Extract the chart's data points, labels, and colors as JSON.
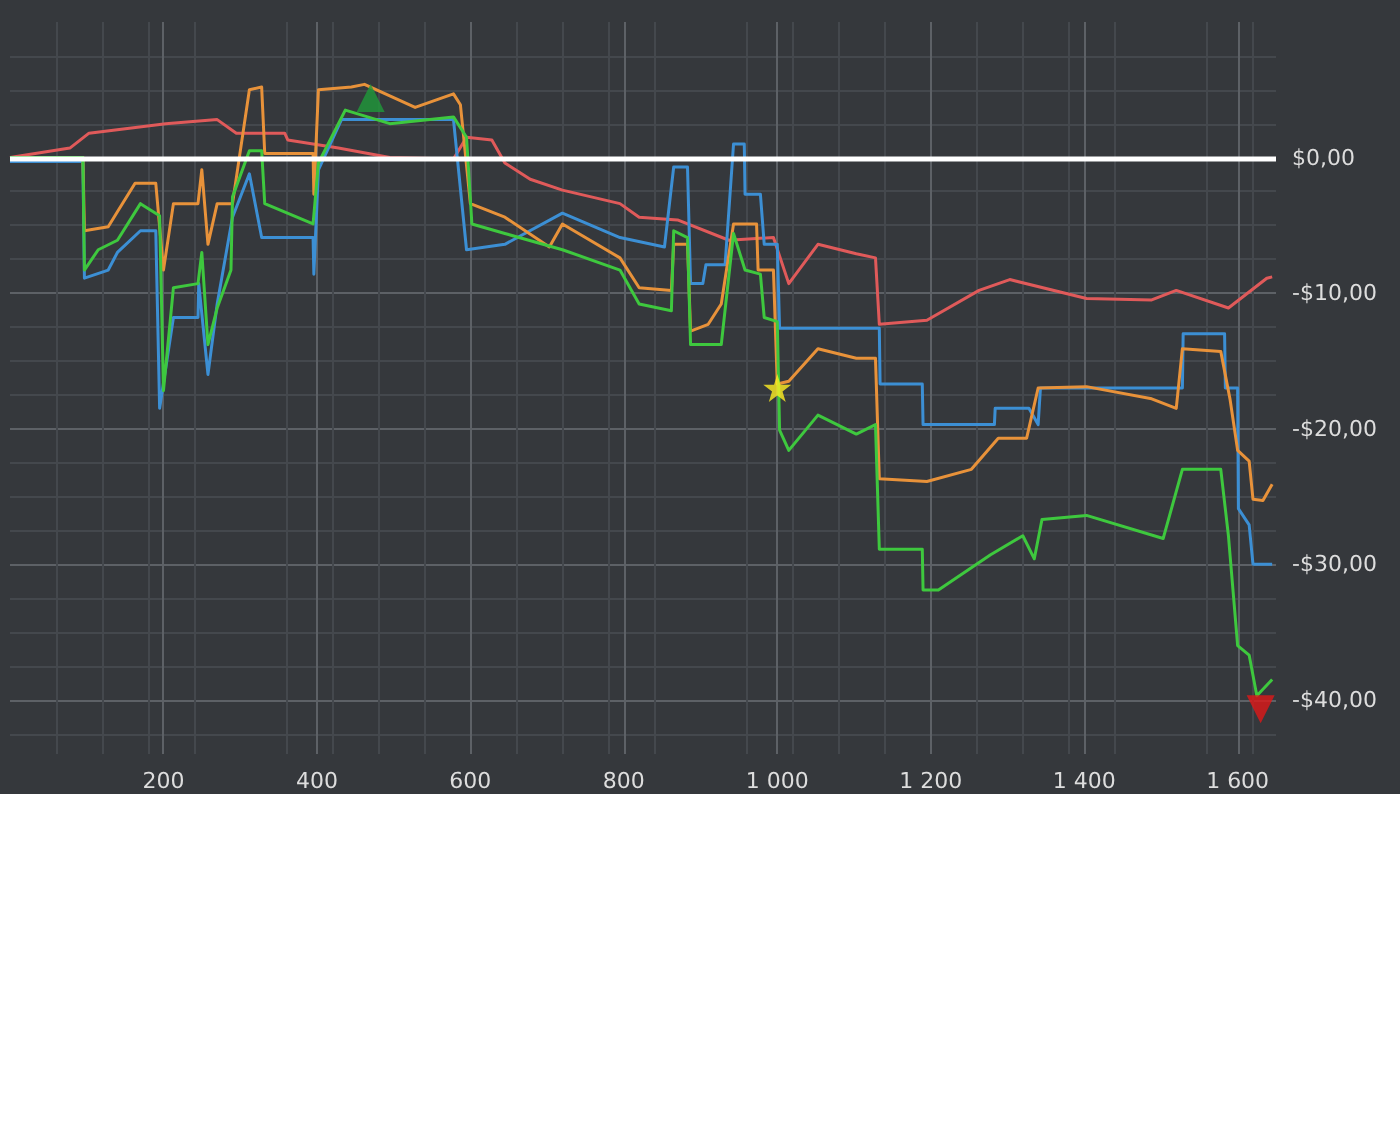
{
  "chart_data": {
    "type": "line",
    "xlim": [
      0,
      1650
    ],
    "xticks": [
      200,
      400,
      600,
      800,
      {
        "value": 1000,
        "label": "1 000"
      },
      {
        "value": 1200,
        "label": "1 200"
      },
      {
        "value": 1400,
        "label": "1 400"
      },
      {
        "value": 1600,
        "label": "1 600"
      }
    ],
    "ylim": [
      -44,
      10
    ],
    "yticks": [
      {
        "value": 0,
        "label": "$0,00"
      },
      {
        "value": -10,
        "label": "-$10,00"
      },
      {
        "value": -20,
        "label": "-$20,00"
      },
      {
        "value": -30,
        "label": "-$30,00"
      },
      {
        "value": -40,
        "label": "-$40,00"
      }
    ],
    "grid": true,
    "marker": "none",
    "line_style": "solid",
    "ref_lines": [
      {
        "axis": "y",
        "value": 0,
        "color": "#ffffff"
      }
    ],
    "series": [
      {
        "color": "#e05a5a",
        "x": [
          0,
          78,
          103,
          203,
          270,
          295,
          358,
          362,
          428,
          495,
          578,
          595,
          628,
          645,
          678,
          720,
          795,
          820,
          870,
          937,
          995,
          1015,
          1053,
          1103,
          1128,
          1133,
          1195,
          1263,
          1303,
          1403,
          1488,
          1520,
          1588,
          1638,
          1645
        ],
        "values": [
          0,
          0.7,
          1.8,
          2.5,
          2.8,
          1.8,
          1.8,
          1.3,
          0.7,
          0,
          -0.1,
          1.5,
          1.3,
          -0.4,
          -1.6,
          -2.4,
          -3.4,
          -4.4,
          -4.6,
          -6.1,
          -5.9,
          -9.3,
          -6.4,
          -7.1,
          -7.4,
          -12.3,
          -12,
          -9.8,
          -9,
          -10.4,
          -10.5,
          -9.8,
          -11.1,
          -8.9,
          -8.8
        ]
      },
      {
        "color": "#3c8fd4",
        "x": [
          0,
          95,
          97,
          128,
          140,
          170,
          190,
          195,
          213,
          245,
          246,
          258,
          270,
          290,
          312,
          328,
          395,
          396,
          402,
          432,
          578,
          595,
          645,
          720,
          795,
          853,
          865,
          883,
          887,
          903,
          907,
          932,
          943,
          957,
          958,
          978,
          983,
          1000,
          1003,
          1133,
          1134,
          1189,
          1190,
          1283,
          1284,
          1328,
          1340,
          1343,
          1528,
          1529,
          1583,
          1584,
          1600,
          1601,
          1615,
          1620,
          1645
        ],
        "values": [
          -0.3,
          -0.3,
          -8.9,
          -8.3,
          -7,
          -5.4,
          -5.4,
          -18.5,
          -11.8,
          -11.8,
          -9.3,
          -16,
          -10.8,
          -4.4,
          -1.2,
          -5.9,
          -5.9,
          -8.6,
          -0.9,
          2.8,
          2.8,
          -6.8,
          -6.4,
          -4.1,
          -5.9,
          -6.6,
          -0.7,
          -0.7,
          -9.3,
          -9.3,
          -7.9,
          -7.9,
          1,
          1,
          -2.7,
          -2.7,
          -6.4,
          -6.4,
          -12.6,
          -12.6,
          -16.7,
          -16.7,
          -19.7,
          -19.7,
          -18.5,
          -18.5,
          -19.7,
          -17,
          -17,
          -13,
          -13,
          -17,
          -17,
          -25.9,
          -27.1,
          -30,
          -30
        ]
      },
      {
        "color": "#e8923a",
        "x": [
          0,
          95,
          97,
          128,
          140,
          163,
          190,
          200,
          213,
          245,
          250,
          258,
          270,
          290,
          312,
          328,
          332,
          395,
          396,
          402,
          445,
          462,
          528,
          578,
          587,
          600,
          645,
          703,
          720,
          795,
          820,
          862,
          865,
          883,
          887,
          910,
          927,
          943,
          973,
          975,
          995,
          1000,
          1015,
          1053,
          1103,
          1128,
          1133,
          1195,
          1253,
          1288,
          1325,
          1340,
          1403,
          1488,
          1520,
          1528,
          1578,
          1590,
          1600,
          1615,
          1620,
          1633,
          1645
        ],
        "values": [
          0,
          0,
          -5.4,
          -5.1,
          -4,
          -1.9,
          -1.9,
          -8.3,
          -3.4,
          -3.4,
          -0.9,
          -6.4,
          -3.4,
          -3.4,
          5,
          5.2,
          0.3,
          0.3,
          -2.7,
          5,
          5.2,
          5.4,
          3.7,
          4.7,
          3.9,
          -3.4,
          -4.4,
          -6.6,
          -4.9,
          -7.4,
          -9.6,
          -9.8,
          -6.4,
          -6.4,
          -12.8,
          -12.3,
          -10.8,
          -4.9,
          -4.9,
          -8.3,
          -8.3,
          -16.7,
          -16.5,
          -14.1,
          -14.8,
          -14.8,
          -23.7,
          -23.9,
          -23,
          -20.7,
          -20.7,
          -17,
          -16.9,
          -17.8,
          -18.5,
          -14.1,
          -14.3,
          -17.8,
          -21.6,
          -22.4,
          -25.2,
          -25.3,
          -24.1
        ]
      },
      {
        "color": "#3ec83e",
        "x": [
          0,
          95,
          97,
          115,
          140,
          170,
          195,
          200,
          213,
          245,
          250,
          258,
          270,
          288,
          290,
          312,
          328,
          332,
          395,
          402,
          437,
          495,
          578,
          595,
          602,
          645,
          720,
          795,
          820,
          862,
          865,
          883,
          887,
          927,
          943,
          958,
          978,
          983,
          1000,
          1003,
          1015,
          1053,
          1103,
          1128,
          1133,
          1189,
          1190,
          1210,
          1278,
          1320,
          1335,
          1345,
          1403,
          1503,
          1528,
          1578,
          1588,
          1600,
          1615,
          1625,
          1645
        ],
        "values": [
          0,
          0,
          -8.3,
          -6.8,
          -6.1,
          -3.4,
          -4.3,
          -17.2,
          -9.6,
          -9.3,
          -7,
          -13.8,
          -11.1,
          -8.3,
          -2.9,
          0.5,
          0.5,
          -3.4,
          -4.9,
          -0.4,
          3.5,
          2.5,
          3,
          1.5,
          -4.9,
          -5.6,
          -6.8,
          -8.3,
          -10.8,
          -11.3,
          -5.4,
          -5.9,
          -13.8,
          -13.8,
          -5.6,
          -8.3,
          -8.6,
          -11.8,
          -12.1,
          -20.1,
          -21.6,
          -19,
          -20.4,
          -19.7,
          -28.9,
          -28.9,
          -31.9,
          -31.9,
          -29.3,
          -27.9,
          -29.6,
          -26.7,
          -26.4,
          -28.1,
          -23,
          -23,
          -27.9,
          -36,
          -36.7,
          -39.7,
          -38.5
        ]
      },
      {
        "type": "scatter",
        "marker": "triangle",
        "color": "#1f9a3a",
        "x": [
          470
        ],
        "values": [
          4.4
        ]
      },
      {
        "type": "scatter",
        "marker": "star",
        "color": "#ffee22",
        "x": [
          1000
        ],
        "values": [
          -17
        ]
      },
      {
        "type": "scatter",
        "marker": "triangle-down",
        "color": "#e01818",
        "x": [
          1630
        ],
        "values": [
          -40.7
        ]
      }
    ]
  }
}
